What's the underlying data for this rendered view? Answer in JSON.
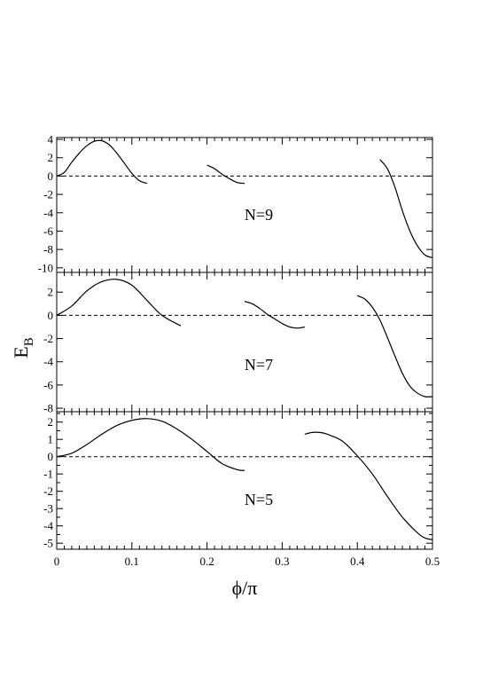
{
  "figure": {
    "xlabel": "ϕ/π",
    "ylabel": "E",
    "ylabel_subscript": "B"
  },
  "colors": {
    "curve": "#000000",
    "axis": "#000000",
    "zero_line": "#000000",
    "background": "#ffffff"
  },
  "chart_data": [
    {
      "type": "line",
      "panel_label": "N=9",
      "xlim": [
        0,
        0.5
      ],
      "ylim": [
        -10.5,
        4.2
      ],
      "yticks": [
        4,
        2,
        0,
        -2,
        -4,
        -6,
        -8,
        -10
      ],
      "xticks": [
        0,
        0.1,
        0.2,
        0.3,
        0.4,
        0.5
      ],
      "show_x_tick_labels": false,
      "zero_line": "dashed",
      "series": [
        {
          "x": [
            0,
            0.01,
            0.02,
            0.03,
            0.04,
            0.05,
            0.06,
            0.07,
            0.08,
            0.09,
            0.1,
            0.11,
            0.12
          ],
          "y": [
            0,
            0.4,
            1.5,
            2.5,
            3.3,
            3.8,
            3.85,
            3.4,
            2.5,
            1.4,
            0.3,
            -0.5,
            -0.8
          ]
        },
        {
          "x": [
            0.2,
            0.21,
            0.22,
            0.23,
            0.24,
            0.25
          ],
          "y": [
            1.2,
            0.8,
            0.2,
            -0.3,
            -0.7,
            -0.8
          ]
        },
        {
          "x": [
            0.43,
            0.44,
            0.45,
            0.46,
            0.47,
            0.48,
            0.49,
            0.5
          ],
          "y": [
            1.8,
            0.8,
            -1.2,
            -3.8,
            -6.0,
            -7.6,
            -8.6,
            -8.9
          ]
        }
      ]
    },
    {
      "type": "line",
      "panel_label": "N=7",
      "xlim": [
        0,
        0.5
      ],
      "ylim": [
        -8.3,
        3.7
      ],
      "yticks": [
        2,
        0,
        -2,
        -4,
        -6,
        -8
      ],
      "xticks": [
        0,
        0.1,
        0.2,
        0.3,
        0.4,
        0.5
      ],
      "show_x_tick_labels": false,
      "zero_line": "dashed",
      "series": [
        {
          "x": [
            0,
            0.02,
            0.04,
            0.06,
            0.08,
            0.1,
            0.12,
            0.14,
            0.165
          ],
          "y": [
            0,
            0.8,
            2.1,
            2.9,
            3.1,
            2.6,
            1.3,
            0.0,
            -0.9
          ]
        },
        {
          "x": [
            0.25,
            0.26,
            0.27,
            0.28,
            0.29,
            0.3,
            0.31,
            0.32,
            0.33
          ],
          "y": [
            1.2,
            1.0,
            0.6,
            0.1,
            -0.3,
            -0.7,
            -1.0,
            -1.1,
            -1.0
          ]
        },
        {
          "x": [
            0.4,
            0.41,
            0.42,
            0.43,
            0.44,
            0.45,
            0.46,
            0.47,
            0.48,
            0.49,
            0.5
          ],
          "y": [
            1.7,
            1.4,
            0.7,
            -0.4,
            -1.9,
            -3.5,
            -5.0,
            -6.1,
            -6.7,
            -7.0,
            -7.0
          ]
        }
      ]
    },
    {
      "type": "line",
      "panel_label": "N=5",
      "xlim": [
        0,
        0.5
      ],
      "ylim": [
        -5.35,
        2.6
      ],
      "yticks": [
        2.5,
        2,
        1.5,
        1,
        0.5,
        0,
        -0.5,
        -1,
        -1.5,
        -2,
        -2.5,
        -3,
        -3.5,
        -4,
        -4.5,
        -5
      ],
      "ytick_labels": [
        "2",
        "1",
        "0",
        "-1",
        "-2",
        "-3",
        "-4",
        "-5"
      ],
      "xticks": [
        0,
        0.1,
        0.2,
        0.3,
        0.4,
        0.5
      ],
      "xtick_labels": [
        "0",
        "0.1",
        "0.2",
        "0.3",
        "0.4",
        "0.5"
      ],
      "show_x_tick_labels": true,
      "zero_line": "dashed",
      "series": [
        {
          "x": [
            0,
            0.02,
            0.04,
            0.06,
            0.08,
            0.1,
            0.12,
            0.14,
            0.16,
            0.18,
            0.2,
            0.22,
            0.24,
            0.25
          ],
          "y": [
            0,
            0.2,
            0.7,
            1.3,
            1.8,
            2.1,
            2.2,
            2.05,
            1.6,
            1.0,
            0.3,
            -0.4,
            -0.75,
            -0.8
          ]
        },
        {
          "x": [
            0.33,
            0.34,
            0.35,
            0.36,
            0.38,
            0.4,
            0.42,
            0.44,
            0.46,
            0.48,
            0.49,
            0.5
          ],
          "y": [
            1.3,
            1.4,
            1.4,
            1.3,
            0.9,
            0.05,
            -1.0,
            -2.3,
            -3.5,
            -4.4,
            -4.7,
            -4.8
          ]
        }
      ]
    }
  ]
}
